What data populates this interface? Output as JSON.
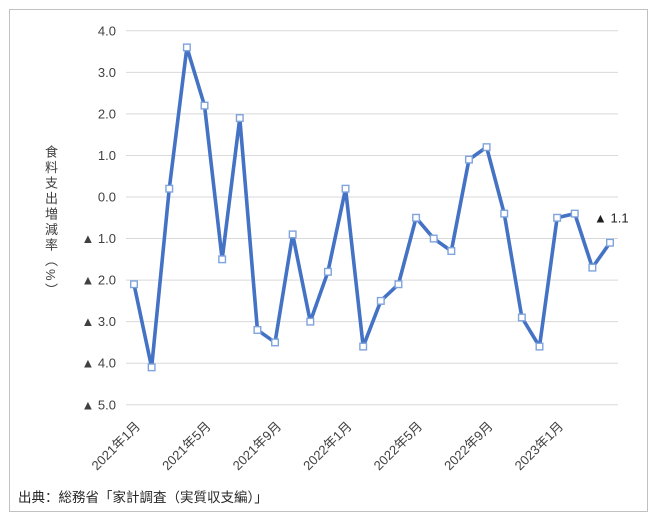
{
  "figure": {
    "source_text": "出典：総務省「家計調査（実質収支編）」"
  },
  "chart_data": {
    "type": "line",
    "title": "",
    "ylabel": "食料支出増減率（%）",
    "x": [
      "2021年1月",
      "2021年2月",
      "2021年3月",
      "2021年4月",
      "2021年5月",
      "2021年6月",
      "2021年7月",
      "2021年8月",
      "2021年9月",
      "2021年10月",
      "2021年11月",
      "2021年12月",
      "2022年1月",
      "2022年2月",
      "2022年3月",
      "2022年4月",
      "2022年5月",
      "2022年6月",
      "2022年7月",
      "2022年8月",
      "2022年9月",
      "2022年10月",
      "2022年11月",
      "2022年12月",
      "2023年1月",
      "2023年2月",
      "2023年3月",
      "2023年4月"
    ],
    "values": [
      -2.1,
      -4.1,
      0.2,
      3.6,
      2.2,
      -1.5,
      1.9,
      -3.2,
      -3.5,
      -0.9,
      -3.0,
      -1.8,
      0.2,
      -3.6,
      -2.5,
      -2.1,
      -0.5,
      -1.0,
      -1.3,
      0.9,
      1.2,
      -0.4,
      -2.9,
      -3.6,
      -0.5,
      -0.4,
      -1.7,
      -1.1
    ],
    "x_tick_every": 4,
    "x_tick_labels": [
      "2021年1月",
      "2021年5月",
      "2021年9月",
      "2022年1月",
      "2022年5月",
      "2022年9月",
      "2023年1月"
    ],
    "y_ticks": [
      4.0,
      3.0,
      2.0,
      1.0,
      0.0,
      -1.0,
      -2.0,
      -3.0,
      -4.0,
      -5.0
    ],
    "ylim": [
      -5.0,
      4.0
    ],
    "negative_prefix": "▲ ",
    "grid": "horizontal-only",
    "legend": false,
    "annotation": {
      "text": "▲ 1.1",
      "month_index": 27,
      "value": -1.1
    },
    "colors": {
      "line": "#4472C4",
      "marker_border": "#7FA3DC",
      "marker_fill": "#FFFFFF",
      "gridline": "#D9D9D9",
      "tick_text": "#404040",
      "annotation_text": "#1f1f1f"
    }
  }
}
